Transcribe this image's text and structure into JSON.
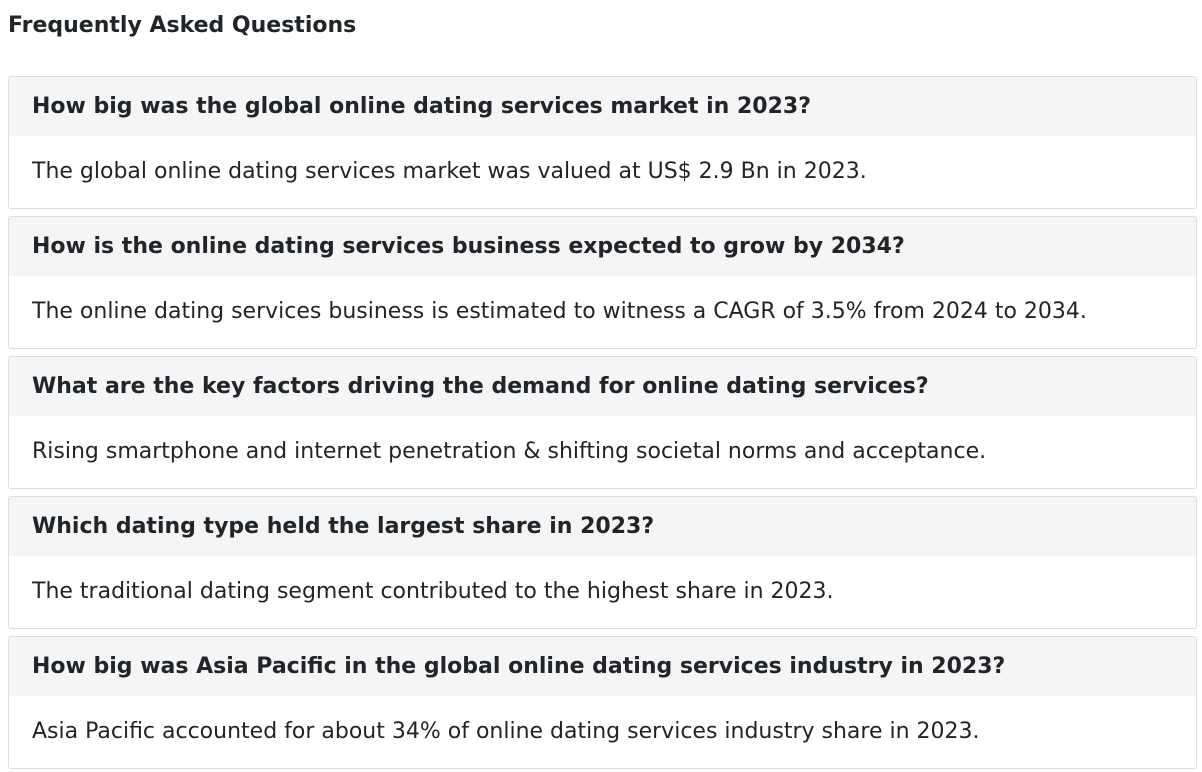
{
  "faq": {
    "title": "Frequently Asked Questions",
    "items": [
      {
        "question": "How big was the global online dating services market in 2023?",
        "answer": "The global online dating services market was valued at US$ 2.9 Bn in 2023."
      },
      {
        "question": "How is the online dating services business expected to grow by 2034?",
        "answer": "The online dating services business is estimated to witness a CAGR of 3.5% from 2024 to 2034."
      },
      {
        "question": "What are the key factors driving the demand for online dating services?",
        "answer": "Rising smartphone and internet penetration & shifting societal norms and acceptance."
      },
      {
        "question": "Which dating type held the largest share in 2023?",
        "answer": "The traditional dating segment contributed to the highest share in 2023."
      },
      {
        "question": "How big was Asia Pacific in the global online dating services industry in 2023?",
        "answer": "Asia Pacific accounted for about 34% of online dating services industry share in 2023."
      }
    ]
  }
}
